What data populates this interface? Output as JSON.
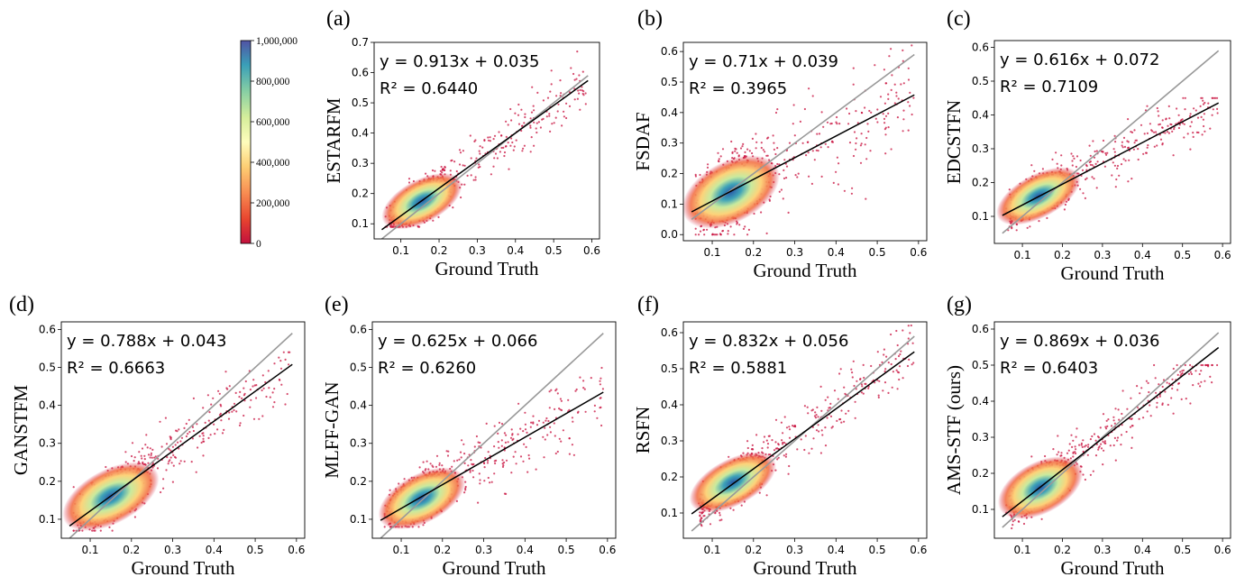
{
  "colorbar": {
    "ticks": [
      "1,000,000",
      "800,000",
      "600,000",
      "400,000",
      "200,000",
      "0"
    ],
    "range": [
      0,
      1000000
    ]
  },
  "colors": {
    "dense": "#3060a8",
    "mid": "#fde98a",
    "sparse": "#c8103d",
    "fit_line": "#000000",
    "identity_line": "#999999"
  },
  "chart_data": [
    {
      "id": "a",
      "tag": "(a)",
      "type": "scatter",
      "ylabel": "ESTARFM",
      "xlabel": "Ground Truth",
      "xlim": [
        0.03,
        0.62
      ],
      "ylim": [
        0.05,
        0.7
      ],
      "xticks": [
        "0.1",
        "0.2",
        "0.3",
        "0.4",
        "0.5",
        "0.6"
      ],
      "yticks": [
        "0.1",
        "0.2",
        "0.3",
        "0.4",
        "0.5",
        "0.6",
        "0.7"
      ],
      "fit": {
        "slope": 0.913,
        "intercept": 0.035
      },
      "eq": "y = 0.913x + 0.035",
      "r2": "R² = 0.6440",
      "fit_range": [
        0.05,
        0.59
      ],
      "identity_range": [
        0.05,
        0.59
      ],
      "cluster": [
        0.155,
        0.175
      ],
      "spread": [
        0.045,
        0.05
      ],
      "noise": 0.045,
      "ymin": 0.09,
      "ymax": 0.67
    },
    {
      "id": "b",
      "tag": "(b)",
      "type": "scatter",
      "ylabel": "FSDAF",
      "xlabel": "Ground Truth",
      "xlim": [
        0.03,
        0.62
      ],
      "ylim": [
        -0.02,
        0.63
      ],
      "xticks": [
        "0.1",
        "0.2",
        "0.3",
        "0.4",
        "0.5",
        "0.6"
      ],
      "yticks": [
        "0.0",
        "0.1",
        "0.2",
        "0.3",
        "0.4",
        "0.5",
        "0.6"
      ],
      "fit": {
        "slope": 0.71,
        "intercept": 0.039
      },
      "eq": "y = 0.71x + 0.039",
      "r2": "R² = 0.3965",
      "fit_range": [
        0.05,
        0.59
      ],
      "identity_range": [
        0.05,
        0.59
      ],
      "cluster": [
        0.145,
        0.14
      ],
      "spread": [
        0.05,
        0.07
      ],
      "noise": 0.08,
      "ymin": 0.0,
      "ymax": 0.62
    },
    {
      "id": "c",
      "tag": "(c)",
      "type": "scatter",
      "ylabel": "EDCSTFN",
      "xlabel": "Ground Truth",
      "xlim": [
        0.03,
        0.62
      ],
      "ylim": [
        0.02,
        0.62
      ],
      "xticks": [
        "0.1",
        "0.2",
        "0.3",
        "0.4",
        "0.5",
        "0.6"
      ],
      "yticks": [
        "0.1",
        "0.2",
        "0.3",
        "0.4",
        "0.5",
        "0.6"
      ],
      "fit": {
        "slope": 0.616,
        "intercept": 0.072
      },
      "eq": "y = 0.616x + 0.072",
      "r2": "R² = 0.7109",
      "fit_range": [
        0.05,
        0.59
      ],
      "identity_range": [
        0.05,
        0.59
      ],
      "cluster": [
        0.14,
        0.16
      ],
      "spread": [
        0.045,
        0.045
      ],
      "noise": 0.04,
      "ymin": 0.04,
      "ymax": 0.45
    },
    {
      "id": "d",
      "tag": "(d)",
      "type": "scatter",
      "ylabel": "GANSTFM",
      "xlabel": "Ground Truth",
      "xlim": [
        0.03,
        0.62
      ],
      "ylim": [
        0.05,
        0.62
      ],
      "xticks": [
        "0.1",
        "0.2",
        "0.3",
        "0.4",
        "0.5",
        "0.6"
      ],
      "yticks": [
        "0.1",
        "0.2",
        "0.3",
        "0.4",
        "0.5",
        "0.6"
      ],
      "fit": {
        "slope": 0.788,
        "intercept": 0.043
      },
      "eq": "y = 0.788x + 0.043",
      "r2": "R² = 0.6663",
      "fit_range": [
        0.05,
        0.59
      ],
      "identity_range": [
        0.05,
        0.59
      ],
      "cluster": [
        0.15,
        0.16
      ],
      "spread": [
        0.05,
        0.05
      ],
      "noise": 0.045,
      "ymin": 0.07,
      "ymax": 0.54
    },
    {
      "id": "e",
      "tag": "(e)",
      "type": "scatter",
      "ylabel": "MLFF-GAN",
      "xlabel": "Ground Truth",
      "xlim": [
        0.03,
        0.62
      ],
      "ylim": [
        0.05,
        0.62
      ],
      "xticks": [
        "0.1",
        "0.2",
        "0.3",
        "0.4",
        "0.5",
        "0.6"
      ],
      "yticks": [
        "0.1",
        "0.2",
        "0.3",
        "0.4",
        "0.5",
        "0.6"
      ],
      "fit": {
        "slope": 0.625,
        "intercept": 0.066
      },
      "eq": "y = 0.625x + 0.066",
      "r2": "R² = 0.6260",
      "fit_range": [
        0.05,
        0.59
      ],
      "identity_range": [
        0.05,
        0.59
      ],
      "cluster": [
        0.15,
        0.155
      ],
      "spread": [
        0.045,
        0.045
      ],
      "noise": 0.045,
      "ymin": 0.08,
      "ymax": 0.55
    },
    {
      "id": "f",
      "tag": "(f)",
      "type": "scatter",
      "ylabel": "RSFN",
      "xlabel": "Ground Truth",
      "xlim": [
        0.03,
        0.62
      ],
      "ylim": [
        0.03,
        0.63
      ],
      "xticks": [
        "0.1",
        "0.2",
        "0.3",
        "0.4",
        "0.5",
        "0.6"
      ],
      "yticks": [
        "0.1",
        "0.2",
        "0.3",
        "0.4",
        "0.5",
        "0.6"
      ],
      "fit": {
        "slope": 0.832,
        "intercept": 0.056
      },
      "eq": "y = 0.832x + 0.056",
      "r2": "R² = 0.5881",
      "fit_range": [
        0.05,
        0.59
      ],
      "identity_range": [
        0.05,
        0.59
      ],
      "cluster": [
        0.15,
        0.185
      ],
      "spread": [
        0.045,
        0.045
      ],
      "noise": 0.04,
      "ymin": 0.05,
      "ymax": 0.62
    },
    {
      "id": "g",
      "tag": "(g)",
      "type": "scatter",
      "ylabel": "AMS-STF (ours)",
      "xlabel": "Ground Truth",
      "xlim": [
        0.03,
        0.62
      ],
      "ylim": [
        0.02,
        0.62
      ],
      "xticks": [
        "0.1",
        "0.2",
        "0.3",
        "0.4",
        "0.5",
        "0.6"
      ],
      "yticks": [
        "0.1",
        "0.2",
        "0.3",
        "0.4",
        "0.5",
        "0.6"
      ],
      "fit": {
        "slope": 0.869,
        "intercept": 0.036
      },
      "eq": "y = 0.869x + 0.036",
      "r2": "R² = 0.6403",
      "fit_range": [
        0.05,
        0.59
      ],
      "identity_range": [
        0.05,
        0.59
      ],
      "cluster": [
        0.145,
        0.16
      ],
      "spread": [
        0.045,
        0.05
      ],
      "noise": 0.04,
      "ymin": 0.03,
      "ymax": 0.5
    }
  ]
}
